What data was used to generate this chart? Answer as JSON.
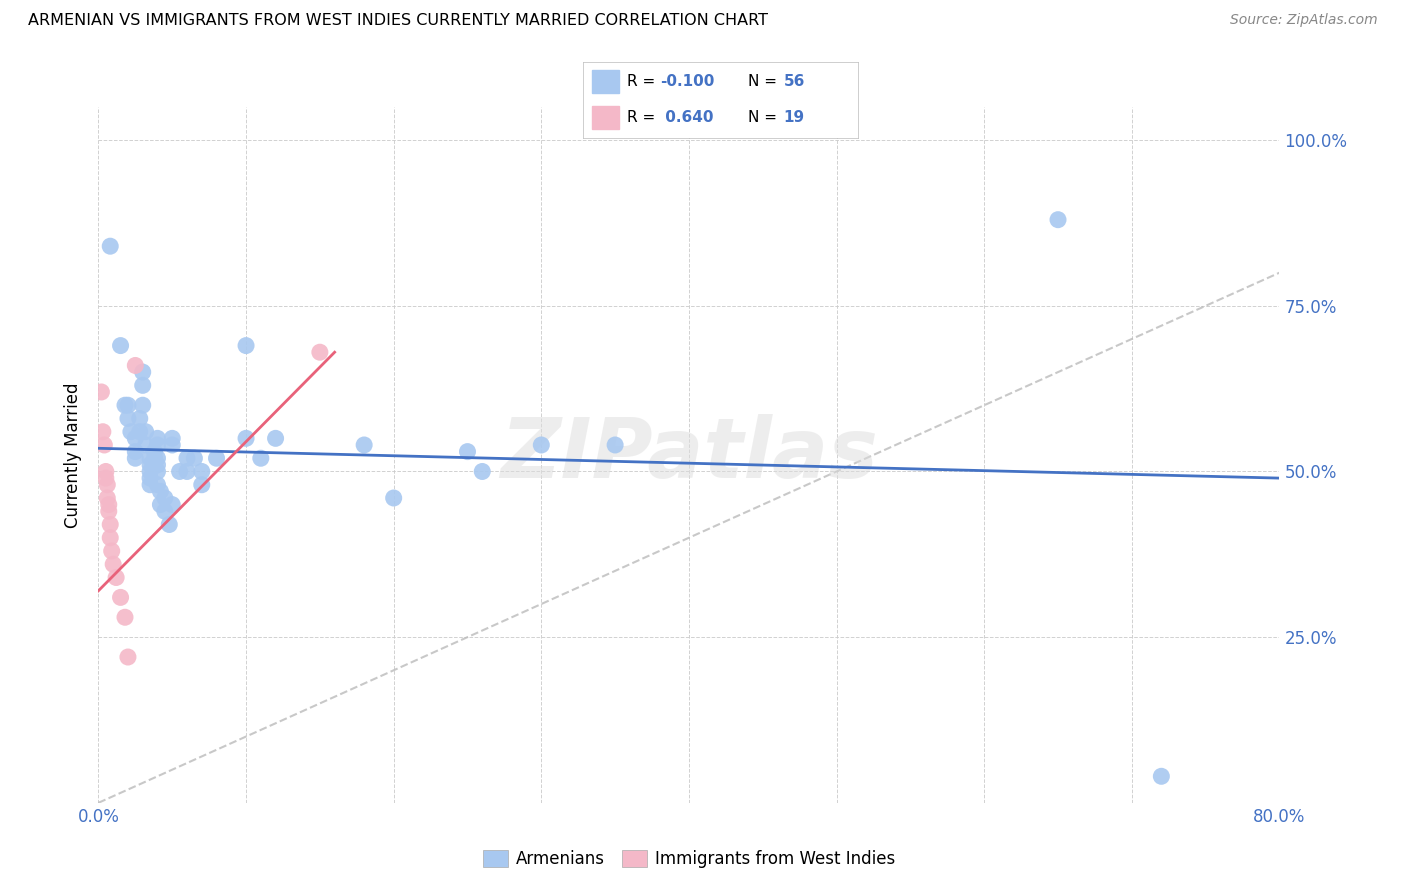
{
  "title": "ARMENIAN VS IMMIGRANTS FROM WEST INDIES CURRENTLY MARRIED CORRELATION CHART",
  "source": "Source: ZipAtlas.com",
  "ylabel": "Currently Married",
  "xlim": [
    0.0,
    0.8
  ],
  "ylim": [
    0.0,
    1.05
  ],
  "xticks": [
    0.0,
    0.1,
    0.2,
    0.3,
    0.4,
    0.5,
    0.6,
    0.7,
    0.8
  ],
  "xticklabels_show": {
    "0.0": "0.0%",
    "0.8": "80.0%"
  },
  "yticks": [
    0.25,
    0.5,
    0.75,
    1.0
  ],
  "yticklabels": [
    "25.0%",
    "50.0%",
    "75.0%",
    "100.0%"
  ],
  "legend_label1": "Armenians",
  "legend_label2": "Immigrants from West Indies",
  "blue_color": "#A8C8F0",
  "pink_color": "#F4B8C8",
  "line_blue": "#4472C4",
  "line_pink": "#E8627A",
  "line_diag": "#BBBBBB",
  "blue_scatter": [
    [
      0.008,
      0.84
    ],
    [
      0.015,
      0.69
    ],
    [
      0.018,
      0.6
    ],
    [
      0.02,
      0.6
    ],
    [
      0.02,
      0.58
    ],
    [
      0.022,
      0.56
    ],
    [
      0.025,
      0.55
    ],
    [
      0.025,
      0.53
    ],
    [
      0.025,
      0.52
    ],
    [
      0.028,
      0.58
    ],
    [
      0.028,
      0.56
    ],
    [
      0.03,
      0.65
    ],
    [
      0.03,
      0.63
    ],
    [
      0.03,
      0.6
    ],
    [
      0.032,
      0.56
    ],
    [
      0.032,
      0.54
    ],
    [
      0.035,
      0.52
    ],
    [
      0.035,
      0.51
    ],
    [
      0.035,
      0.5
    ],
    [
      0.035,
      0.49
    ],
    [
      0.035,
      0.48
    ],
    [
      0.038,
      0.53
    ],
    [
      0.038,
      0.52
    ],
    [
      0.038,
      0.51
    ],
    [
      0.04,
      0.55
    ],
    [
      0.04,
      0.54
    ],
    [
      0.04,
      0.52
    ],
    [
      0.04,
      0.51
    ],
    [
      0.04,
      0.5
    ],
    [
      0.04,
      0.48
    ],
    [
      0.042,
      0.47
    ],
    [
      0.042,
      0.45
    ],
    [
      0.045,
      0.46
    ],
    [
      0.045,
      0.44
    ],
    [
      0.048,
      0.42
    ],
    [
      0.05,
      0.55
    ],
    [
      0.05,
      0.54
    ],
    [
      0.05,
      0.45
    ],
    [
      0.055,
      0.5
    ],
    [
      0.06,
      0.52
    ],
    [
      0.06,
      0.5
    ],
    [
      0.065,
      0.52
    ],
    [
      0.07,
      0.5
    ],
    [
      0.07,
      0.48
    ],
    [
      0.08,
      0.52
    ],
    [
      0.1,
      0.69
    ],
    [
      0.1,
      0.55
    ],
    [
      0.11,
      0.52
    ],
    [
      0.12,
      0.55
    ],
    [
      0.18,
      0.54
    ],
    [
      0.2,
      0.46
    ],
    [
      0.25,
      0.53
    ],
    [
      0.26,
      0.5
    ],
    [
      0.3,
      0.54
    ],
    [
      0.35,
      0.54
    ],
    [
      0.65,
      0.88
    ],
    [
      0.72,
      0.04
    ]
  ],
  "pink_scatter": [
    [
      0.002,
      0.62
    ],
    [
      0.003,
      0.56
    ],
    [
      0.004,
      0.54
    ],
    [
      0.005,
      0.5
    ],
    [
      0.005,
      0.49
    ],
    [
      0.006,
      0.48
    ],
    [
      0.006,
      0.46
    ],
    [
      0.007,
      0.45
    ],
    [
      0.007,
      0.44
    ],
    [
      0.008,
      0.42
    ],
    [
      0.008,
      0.4
    ],
    [
      0.009,
      0.38
    ],
    [
      0.01,
      0.36
    ],
    [
      0.012,
      0.34
    ],
    [
      0.015,
      0.31
    ],
    [
      0.018,
      0.28
    ],
    [
      0.02,
      0.22
    ],
    [
      0.025,
      0.66
    ],
    [
      0.15,
      0.68
    ]
  ],
  "diag_line": [
    [
      0.0,
      0.0
    ],
    [
      0.8,
      0.8
    ]
  ],
  "blue_line": [
    [
      0.0,
      0.535
    ],
    [
      0.8,
      0.49
    ]
  ],
  "pink_line": [
    [
      0.0,
      0.32
    ],
    [
      0.16,
      0.68
    ]
  ]
}
